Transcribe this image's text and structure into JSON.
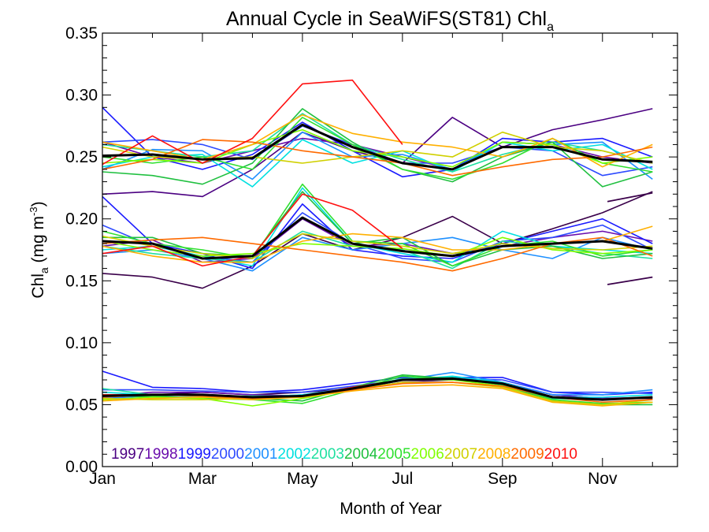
{
  "chart_data": {
    "type": "line",
    "title": "Annual Cycle in SeaWiFS(ST81) Chl",
    "title_subscript": "a",
    "xlabel": "Month of Year",
    "ylabel": "Chl",
    "ylabel_subscript": "a",
    "ylabel_units": " (mg m",
    "ylabel_units_sup": "-3",
    "ylabel_units_close": ")",
    "xlim": [
      1,
      12.5
    ],
    "ylim": [
      0.0,
      0.35
    ],
    "x_ticks": [
      {
        "value": 1,
        "label": "Jan"
      },
      {
        "value": 3,
        "label": "Mar"
      },
      {
        "value": 5,
        "label": "May"
      },
      {
        "value": 7,
        "label": "Jul"
      },
      {
        "value": 9,
        "label": "Sep"
      },
      {
        "value": 11,
        "label": "Nov"
      }
    ],
    "y_ticks": [
      "0.00",
      "0.05",
      "0.10",
      "0.15",
      "0.20",
      "0.25",
      "0.30",
      "0.35"
    ],
    "x": [
      1,
      2,
      3,
      4,
      5,
      6,
      7,
      8,
      9,
      10,
      11,
      12
    ],
    "legend_placement": "bottom",
    "groups": [
      {
        "series": [
          {
            "name": "1997",
            "color": "#4b0082",
            "values": [
              0.22,
              0.222,
              0.218,
              0.24,
              0.27,
              0.255,
              0.245,
              0.282,
              0.258,
              0.272,
              0.28,
              0.289
            ]
          },
          {
            "name": "1998",
            "color": "#6a0dad",
            "values": [
              0.262,
              0.25,
              0.245,
              0.255,
              0.265,
              0.26,
              0.25,
              0.24,
              0.262,
              0.26,
              0.25,
              0.245
            ]
          },
          {
            "name": "1999",
            "color": "#1a1aff",
            "values": [
              0.29,
              0.25,
              0.24,
              0.252,
              0.278,
              0.255,
              0.234,
              0.24,
              0.265,
              0.262,
              0.265,
              0.25
            ]
          },
          {
            "name": "2000",
            "color": "#2e4bff",
            "values": [
              0.262,
              0.264,
              0.26,
              0.248,
              0.275,
              0.26,
              0.245,
              0.245,
              0.258,
              0.255,
              0.235,
              0.242
            ]
          },
          {
            "name": "2001",
            "color": "#1e90ff",
            "values": [
              0.24,
              0.256,
              0.255,
              0.232,
              0.27,
              0.25,
              0.252,
              0.24,
              0.262,
              0.26,
              0.262,
              0.232
            ]
          },
          {
            "name": "2002",
            "color": "#00e0e0",
            "values": [
              0.242,
              0.25,
              0.252,
              0.226,
              0.264,
              0.245,
              0.255,
              0.238,
              0.262,
              0.255,
              0.26,
              0.24
            ]
          },
          {
            "name": "2003",
            "color": "#20e0a0",
            "values": [
              0.26,
              0.255,
              0.25,
              0.255,
              0.285,
              0.26,
              0.248,
              0.238,
              0.252,
              0.262,
              0.255,
              0.245
            ]
          },
          {
            "name": "2004",
            "color": "#20c040",
            "values": [
              0.238,
              0.235,
              0.228,
              0.245,
              0.289,
              0.262,
              0.24,
              0.23,
              0.25,
              0.262,
              0.226,
              0.238
            ]
          },
          {
            "name": "2005",
            "color": "#30e030",
            "values": [
              0.25,
              0.245,
              0.25,
              0.24,
              0.282,
              0.26,
              0.24,
              0.232,
              0.245,
              0.265,
              0.245,
              0.238
            ]
          },
          {
            "name": "2006",
            "color": "#80ff00",
            "values": [
              0.245,
              0.248,
              0.245,
              0.26,
              0.272,
              0.255,
              0.25,
              0.242,
              0.262,
              0.26,
              0.245,
              0.25
            ]
          },
          {
            "name": "2007",
            "color": "#d0d000",
            "values": [
              0.258,
              0.25,
              0.248,
              0.25,
              0.245,
              0.25,
              0.255,
              0.25,
              0.27,
              0.258,
              0.255,
              0.245
            ]
          },
          {
            "name": "2008",
            "color": "#ffb000",
            "values": [
              0.262,
              0.255,
              0.248,
              0.26,
              0.284,
              0.269,
              0.262,
              0.258,
              0.25,
              0.265,
              0.242,
              0.26
            ]
          },
          {
            "name": "2009",
            "color": "#ff6a00",
            "values": [
              0.24,
              0.248,
              0.264,
              0.262,
              0.255,
              0.25,
              0.245,
              0.235,
              0.242,
              0.248,
              0.25,
              0.258
            ]
          },
          {
            "name": "2010",
            "color": "#ff1010",
            "values": [
              0.244,
              0.267,
              0.245,
              0.265,
              0.309,
              0.312,
              0.26,
              null,
              null,
              null,
              null,
              null
            ]
          }
        ],
        "mean": {
          "color": "#000000",
          "values": [
            0.251,
            0.252,
            0.248,
            0.249,
            0.276,
            0.258,
            0.245,
            0.24,
            0.258,
            0.258,
            0.248,
            0.246
          ]
        }
      },
      {
        "series": [
          {
            "name": "1997",
            "color": "#3a004a",
            "values": [
              0.156,
              0.153,
              0.144,
              0.162,
              0.188,
              0.175,
              0.185,
              0.202,
              0.18,
              0.192,
              0.205,
              0.222
            ]
          },
          {
            "name": "1998",
            "color": "#6a0dad",
            "values": [
              0.178,
              0.183,
              0.165,
              0.168,
              0.2,
              0.178,
              0.18,
              0.172,
              0.178,
              0.185,
              0.19,
              0.182
            ]
          },
          {
            "name": "1999",
            "color": "#1a1aff",
            "values": [
              0.218,
              0.18,
              0.172,
              0.16,
              0.212,
              0.175,
              0.17,
              0.168,
              0.18,
              0.19,
              0.2,
              0.18
            ]
          },
          {
            "name": "2000",
            "color": "#2e4bff",
            "values": [
              0.195,
              0.178,
              0.17,
              0.165,
              0.205,
              0.18,
              0.168,
              0.165,
              0.182,
              0.185,
              0.195,
              0.175
            ]
          },
          {
            "name": "2001",
            "color": "#1e90ff",
            "values": [
              0.172,
              0.175,
              0.168,
              0.158,
              0.185,
              0.175,
              0.18,
              0.185,
              0.175,
              0.168,
              0.185,
              0.175
            ]
          },
          {
            "name": "2002",
            "color": "#00e0e0",
            "values": [
              0.175,
              0.178,
              0.17,
              0.162,
              0.225,
              0.18,
              0.172,
              0.165,
              0.19,
              0.178,
              0.175,
              0.172
            ]
          },
          {
            "name": "2003",
            "color": "#20e0a0",
            "values": [
              0.178,
              0.172,
              0.168,
              0.165,
              0.19,
              0.178,
              0.175,
              0.16,
              0.182,
              0.178,
              0.172,
              0.168
            ]
          },
          {
            "name": "2004",
            "color": "#20c040",
            "values": [
              0.185,
              0.185,
              0.172,
              0.17,
              0.222,
              0.18,
              0.185,
              0.162,
              0.175,
              0.178,
              0.168,
              0.172
            ]
          },
          {
            "name": "2005",
            "color": "#30e030",
            "values": [
              0.19,
              0.18,
              0.175,
              0.168,
              0.228,
              0.182,
              0.18,
              0.162,
              0.178,
              0.182,
              0.17,
              0.175
            ]
          },
          {
            "name": "2006",
            "color": "#80ff00",
            "values": [
              0.182,
              0.175,
              0.17,
              0.172,
              0.18,
              0.178,
              0.176,
              0.17,
              0.185,
              0.175,
              0.172,
              0.175
            ]
          },
          {
            "name": "2007",
            "color": "#d0d000",
            "values": [
              0.186,
              0.178,
              0.172,
              0.168,
              0.188,
              0.182,
              0.178,
              0.172,
              0.18,
              0.176,
              0.175,
              0.178
            ]
          },
          {
            "name": "2008",
            "color": "#ffb000",
            "values": [
              0.178,
              0.17,
              0.165,
              0.165,
              0.182,
              0.188,
              0.185,
              0.175,
              0.175,
              0.18,
              0.182,
              0.194
            ]
          },
          {
            "name": "2009",
            "color": "#ff6a00",
            "values": [
              0.18,
              0.183,
              0.185,
              0.18,
              0.175,
              0.17,
              0.165,
              0.158,
              0.168,
              0.18,
              0.185,
              0.17
            ]
          },
          {
            "name": "2010",
            "color": "#ff1010",
            "values": [
              0.172,
              0.178,
              0.162,
              0.17,
              0.22,
              0.207,
              0.176,
              null,
              null,
              null,
              null,
              null
            ]
          }
        ],
        "mean": {
          "color": "#000000",
          "values": [
            0.182,
            0.18,
            0.168,
            0.17,
            0.201,
            0.18,
            0.174,
            0.17,
            0.178,
            0.18,
            0.182,
            0.176
          ]
        }
      },
      {
        "series": [
          {
            "name": "1997",
            "color": "#3a004a",
            "values": [
              0.058,
              0.058,
              0.06,
              0.058,
              0.06,
              0.063,
              0.07,
              0.07,
              0.068,
              0.058,
              0.055,
              0.055
            ]
          },
          {
            "name": "1998",
            "color": "#6a0dad",
            "values": [
              0.057,
              0.06,
              0.06,
              0.058,
              0.057,
              0.062,
              0.068,
              0.07,
              0.068,
              0.058,
              0.055,
              0.056
            ]
          },
          {
            "name": "1999",
            "color": "#1a1aff",
            "values": [
              0.077,
              0.064,
              0.063,
              0.06,
              0.062,
              0.067,
              0.072,
              0.072,
              0.072,
              0.06,
              0.058,
              0.06
            ]
          },
          {
            "name": "2000",
            "color": "#2e4bff",
            "values": [
              0.062,
              0.062,
              0.061,
              0.06,
              0.06,
              0.065,
              0.07,
              0.071,
              0.07,
              0.06,
              0.06,
              0.059
            ]
          },
          {
            "name": "2001",
            "color": "#1e90ff",
            "values": [
              0.055,
              0.057,
              0.058,
              0.056,
              0.058,
              0.064,
              0.07,
              0.076,
              0.068,
              0.058,
              0.058,
              0.062
            ]
          },
          {
            "name": "2002",
            "color": "#00e0e0",
            "values": [
              0.06,
              0.058,
              0.058,
              0.056,
              0.058,
              0.063,
              0.07,
              0.073,
              0.068,
              0.056,
              0.056,
              0.058
            ]
          },
          {
            "name": "2003",
            "color": "#20e0a0",
            "values": [
              0.063,
              0.058,
              0.057,
              0.057,
              0.057,
              0.063,
              0.071,
              0.072,
              0.066,
              0.055,
              0.054,
              0.056
            ]
          },
          {
            "name": "2004",
            "color": "#20c040",
            "values": [
              0.058,
              0.056,
              0.056,
              0.055,
              0.053,
              0.064,
              0.074,
              0.071,
              0.066,
              0.053,
              0.05,
              0.05
            ]
          },
          {
            "name": "2005",
            "color": "#30e030",
            "values": [
              0.058,
              0.057,
              0.055,
              0.054,
              0.051,
              0.062,
              0.073,
              0.07,
              0.067,
              0.054,
              0.051,
              0.052
            ]
          },
          {
            "name": "2006",
            "color": "#80ff00",
            "values": [
              0.054,
              0.056,
              0.055,
              0.049,
              0.055,
              0.062,
              0.07,
              0.07,
              0.065,
              0.052,
              0.05,
              0.052
            ]
          },
          {
            "name": "2007",
            "color": "#d0d000",
            "values": [
              0.055,
              0.054,
              0.054,
              0.055,
              0.056,
              0.062,
              0.068,
              0.068,
              0.064,
              0.053,
              0.05,
              0.054
            ]
          },
          {
            "name": "2008",
            "color": "#ffb000",
            "values": [
              0.053,
              0.055,
              0.056,
              0.054,
              0.056,
              0.061,
              0.065,
              0.066,
              0.063,
              0.052,
              0.049,
              0.052
            ]
          },
          {
            "name": "2009",
            "color": "#ff6a00",
            "values": [
              0.056,
              0.058,
              0.057,
              0.055,
              0.057,
              0.062,
              0.067,
              0.068,
              0.065,
              0.056,
              0.052,
              0.054
            ]
          },
          {
            "name": "2010",
            "color": "#ff1010",
            "values": [
              0.058,
              0.058,
              0.058,
              0.056,
              0.057,
              0.064,
              0.07,
              null,
              null,
              null,
              null,
              null
            ]
          }
        ],
        "mean": {
          "color": "#000000",
          "values": [
            0.057,
            0.058,
            0.058,
            0.056,
            0.057,
            0.063,
            0.07,
            0.071,
            0.067,
            0.056,
            0.054,
            0.056
          ]
        }
      }
    ],
    "extra_segments": [
      {
        "color": "#3a004a",
        "x": [
          11.1,
          12
        ],
        "values": [
          0.214,
          0.221
        ]
      },
      {
        "color": "#3a004a",
        "x": [
          11.1,
          12
        ],
        "values": [
          0.147,
          0.153
        ]
      }
    ],
    "legend": [
      {
        "label": "1997",
        "color": "#4b0082"
      },
      {
        "label": "1998",
        "color": "#6a0dad"
      },
      {
        "label": "1999",
        "color": "#1a1aff"
      },
      {
        "label": "2000",
        "color": "#2e4bff"
      },
      {
        "label": "2001",
        "color": "#1e90ff"
      },
      {
        "label": "2002",
        "color": "#00e0e0"
      },
      {
        "label": "2003",
        "color": "#20e0a0"
      },
      {
        "label": "2004",
        "color": "#20c040"
      },
      {
        "label": "2005",
        "color": "#30e030"
      },
      {
        "label": "2006",
        "color": "#80ff00"
      },
      {
        "label": "2007",
        "color": "#d0d000"
      },
      {
        "label": "2008",
        "color": "#ffb000"
      },
      {
        "label": "2009",
        "color": "#ff6a00"
      },
      {
        "label": "2010",
        "color": "#ff1010"
      }
    ]
  }
}
